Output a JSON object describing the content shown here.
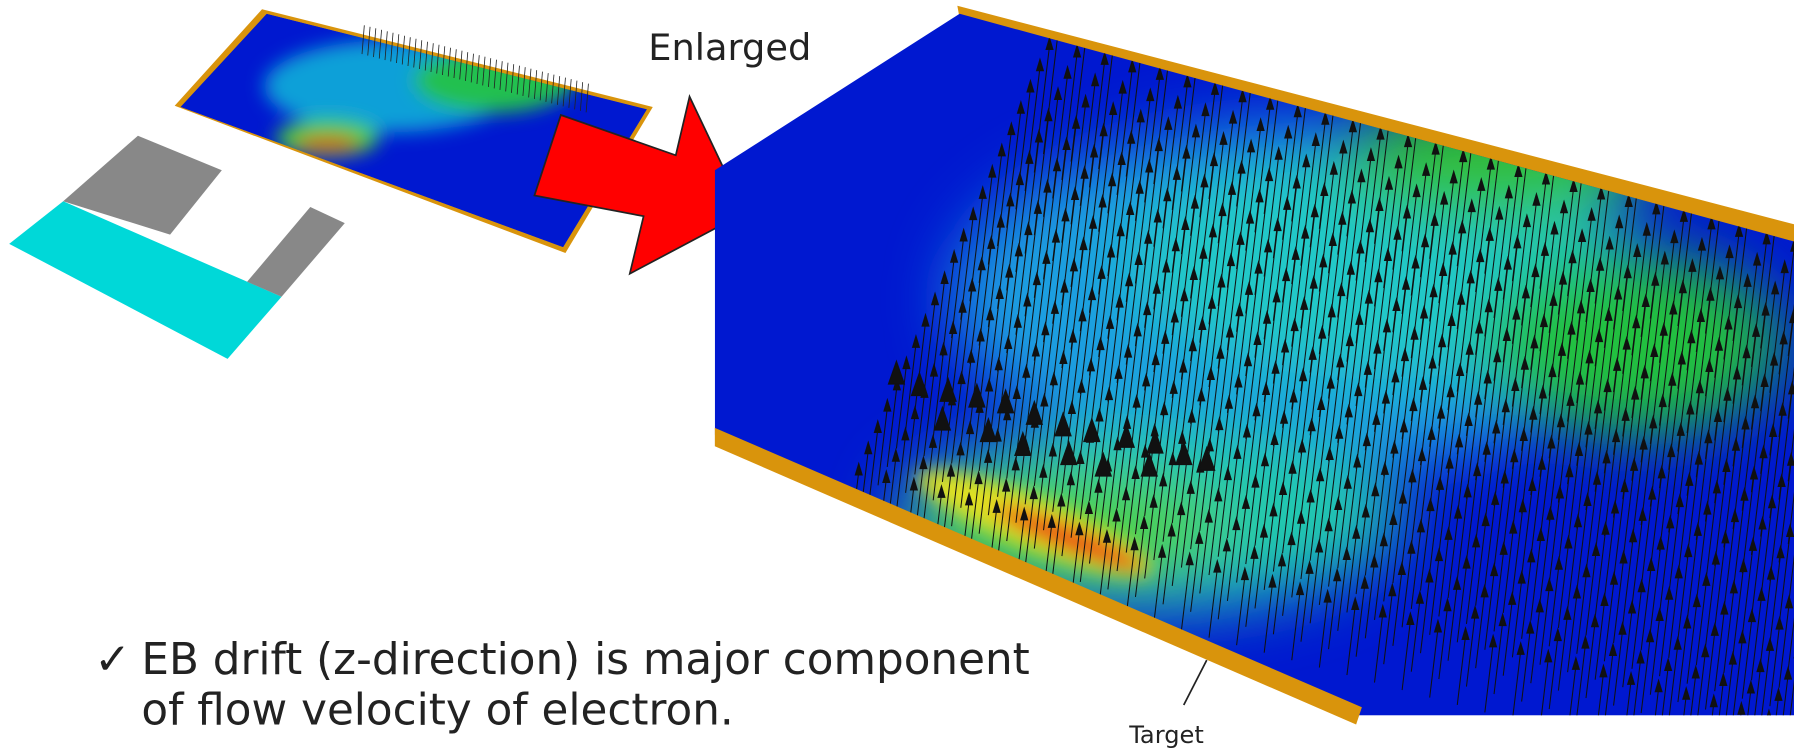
{
  "figure": {
    "label": "Enlarged",
    "bullet_marker": "✓",
    "bullet_lines": [
      "EB drift (z-direction) is major component",
      "of flow velocity of electron."
    ],
    "target_label": "Target"
  }
}
